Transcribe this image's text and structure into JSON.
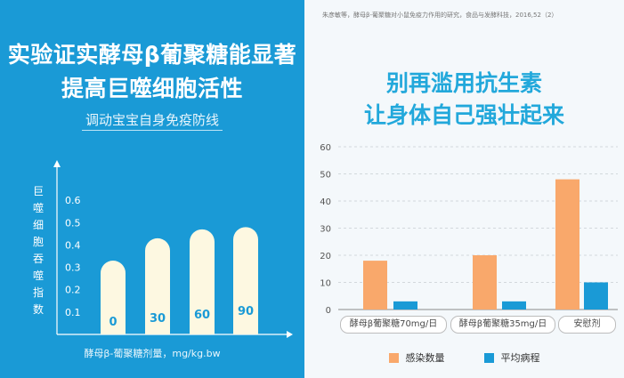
{
  "left_panel": {
    "title_line1": "实验证实酵母β葡聚糖能显著",
    "title_line2": "提高巨噬细胞活性",
    "subtitle": "调动宝宝自身免疫防线",
    "background": "#1a9ad6"
  },
  "right_panel": {
    "source": "朱彦敏等，酵母β-葡聚糖对小鼠免疫力作用的研究，食品与发酵科技，2016,52（2）",
    "title_line1": "别再滥用抗生素",
    "title_line2": "让身体自己强壮起来",
    "accent": "#22a8db"
  },
  "chart_data": [
    {
      "type": "bar",
      "ylabel": "巨噬细胞吞噬指数",
      "xlabel": "酵母β-葡聚糖剂量，mg/kg.bw",
      "y_ticks": [
        "0.1",
        "0.2",
        "0.3",
        "0.4",
        "0.5",
        "0.6"
      ],
      "ylim": [
        0,
        0.7
      ],
      "grid": false,
      "series": [
        {
          "points": [
            {
              "category": "0",
              "value": 0.33
            },
            {
              "category": "30",
              "value": 0.43
            },
            {
              "category": "60",
              "value": 0.47
            },
            {
              "category": "90",
              "value": 0.48
            }
          ]
        }
      ],
      "bar_color": "#fdf8e1"
    },
    {
      "type": "bar",
      "categories": [
        "酵母β葡聚糖70mg/日",
        "酵母β葡聚糖35mg/日",
        "安慰剂"
      ],
      "y_ticks": [
        "0",
        "10",
        "20",
        "30",
        "40",
        "50",
        "60"
      ],
      "ylim": [
        0,
        65
      ],
      "grid": "horizontal dashed",
      "legend_position": "bottom",
      "series": [
        {
          "name": "感染数量",
          "color": "#f9a86b",
          "values": [
            18,
            20,
            48
          ]
        },
        {
          "name": "平均病程",
          "color": "#1a9ad6",
          "values": [
            3,
            3,
            10
          ]
        }
      ]
    }
  ]
}
